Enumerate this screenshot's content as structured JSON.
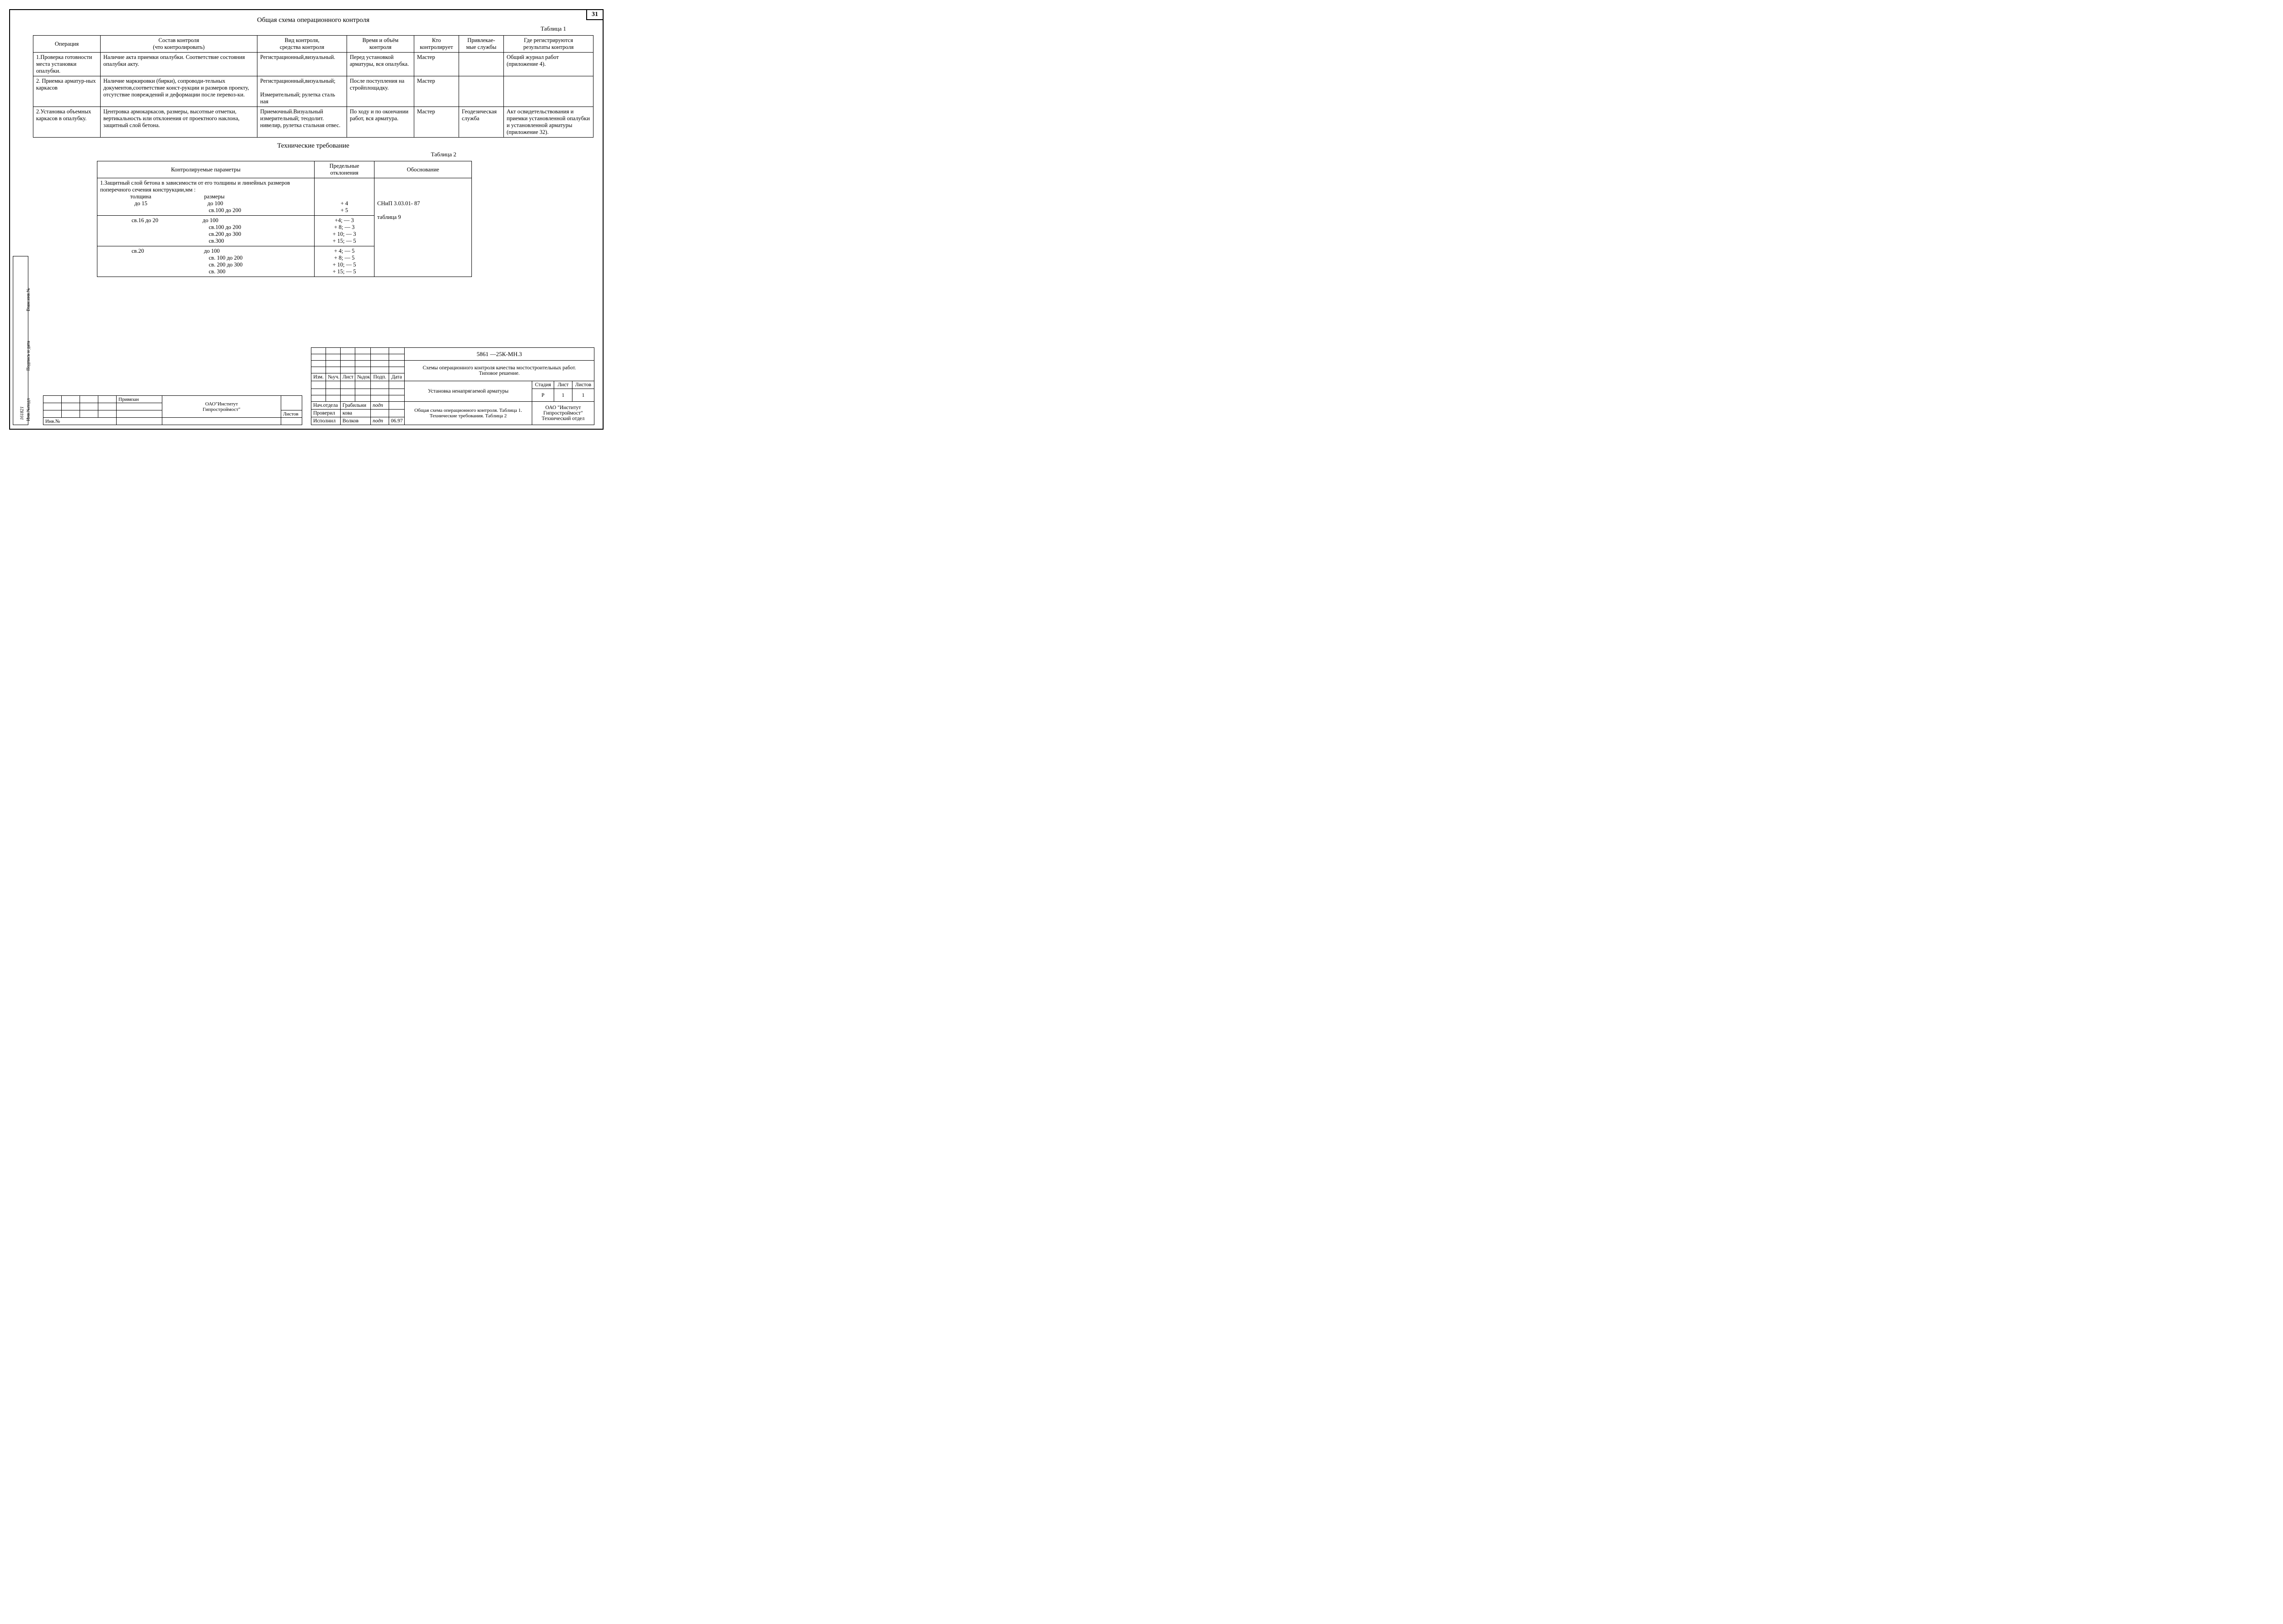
{
  "page_number": "31",
  "title_main": "Общая схема операционного контроля",
  "table1_label": "Таблица 1",
  "t1": {
    "head": [
      "Операция",
      "Состав контроля\n(что контролировать)",
      "Вид контроля,\nсредства контроля",
      "Время и объём\nконтроля",
      "Кто\nконтролирует",
      "Привлекае-\nмые службы",
      "Где регистрируются\nрезультаты контроля"
    ],
    "rows": [
      [
        "1.Проверка готовности места установки опалубки.",
        "Наличие акта приемки опалубки. Соответствие состояния опалубки акту.",
        "Регистрационный,визуальный.",
        "Перед установкой арматуры, вся опалубка.",
        "Мастер",
        "",
        "Общий журнал работ (приложение 4)."
      ],
      [
        "2. Приемка арматур-ных каркасов",
        "Наличие маркировки (бирки), сопроводи-тельных документов,соответствие конст-рукции и размеров проекту, отсутствие повреждений и деформации после перевоз-ки.",
        "Регистрационный,визуальный;\n\nИзмерительный; рулетка сталь ная",
        "После поступления на стройплощадку.",
        "Мастер",
        "",
        ""
      ],
      [
        "2.Установка объемных каркасов в опалубку.",
        "Центровка армокаркасов, размеры, высотные отметки, вертикальность или отклонения от проектного наклона, защитный слой бетона.",
        "Приемочный.Визуальный измерительный; теодолит. нивелир, рулетка стальная отвес.",
        "По ходу и по окончании работ, вся арматура.",
        "Мастер",
        "Геодезическая служба",
        "Акт освидетельствования  и приемки установленной опалубки и установленной арматуры (приложение 32)."
      ]
    ]
  },
  "title2": "Технические требование",
  "table2_label": "Таблица 2",
  "t2": {
    "head": [
      "Контролируемые параметры",
      "Предельные отклонения",
      "Обоснование"
    ],
    "rows": [
      {
        "p": "1.Защитный слой бетона в зависимости от его толщины и линейных размеров\nпоперечного сечения конструкции,мм :\n                     толщина                                     размеры\n                        до 15                                          до 100\n                                                                            св.100 до 200",
        "d": "\n\n\n+ 4\n+ 5",
        "b": "\n\n\nСНиП 3.03.01- 87"
      },
      {
        "p": "                      св.16 до 20                               до 100\n                                                                            св.100 до 200\n                                                                            св.200 до 300\n                                                                            св.300",
        "d": "+4; — 3\n+ 8; — 3\n+ 10; — 3\n+ 15; — 5",
        "b": "таблица 9"
      },
      {
        "p": "                      св.20                                          до 100\n                                                                            св. 100 до 200\n                                                                            св. 200 до 300\n                                                                            св. 300",
        "d": "+ 4; — 5\n+ 8; — 5\n+ 10; — 5\n+ 15; — 5",
        "b": ""
      }
    ]
  },
  "stamp": {
    "rev_head": [
      "Изм.",
      "№уч.",
      "Лист",
      "№док",
      "Подп.",
      "Дата"
    ],
    "doc_code": "5861 —25К-МН.3",
    "doc_title": "Схемы  операционного контроля качества мостостроительных работ.\nТиповое решение.",
    "sheet_title": "Установка ненапрягаемой арматуры",
    "desc": "Общая схема операционного контроля.  Таблица 1.\nТехнические требования. Таблица 2",
    "org_top": "ОАО\"Институт\nГипростроймост\"",
    "org_bot": "ОАО \"Институт\nГипростроймост\"\nТехнический  отдел",
    "stage_h": "Стадия",
    "sheet_h": "Лист",
    "sheets_h": "Листов",
    "stage": "Р",
    "sheet": "1",
    "sheets": "1",
    "roles": [
      [
        "Нач.отдела",
        "Грабильни",
        "подп",
        ""
      ],
      [
        "Проверил",
        "кова",
        "",
        ""
      ],
      [
        "Исполнил",
        "Волков",
        "подп",
        "06.97"
      ]
    ],
    "left_labels": [
      "",
      "",
      "",
      "Привязан"
    ],
    "listov": "Листов",
    "inv": "Инв.№"
  },
  "side": [
    "Инв.№подл",
    "Подпись и дата",
    "Взам.инв.№"
  ],
  "side_num": "161821"
}
